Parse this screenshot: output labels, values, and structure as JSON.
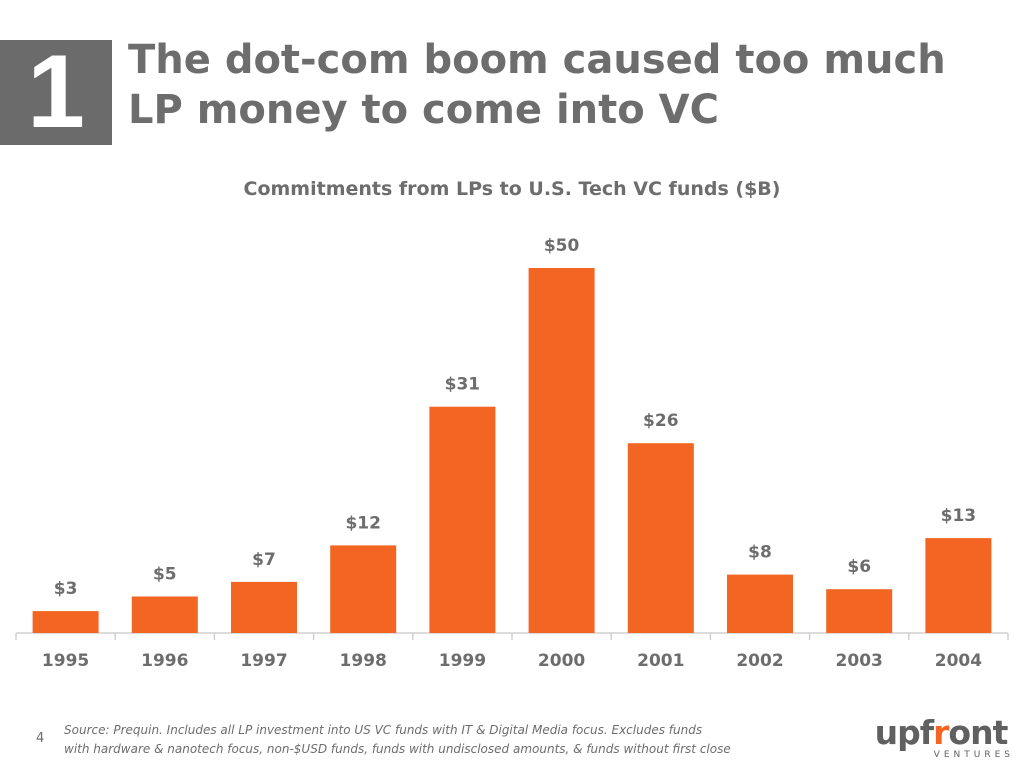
{
  "slide": {
    "number": "1",
    "title_lines": [
      "The dot-com boom caused too much",
      "LP money to come into VC"
    ],
    "page_number": "4",
    "footnote_lines": [
      "Source:  Prequin.  Includes all LP investment into US VC funds with IT & Digital Media focus.  Excludes funds",
      "with hardware & nanotech focus, non-$USD funds, funds with undisclosed amounts, & funds without first close"
    ]
  },
  "logo": {
    "word_pre": "upf",
    "word_accent": "r",
    "word_post": "ont",
    "sub": "VENTURES",
    "accent_color": "#f26522"
  },
  "chart_data": {
    "type": "bar",
    "title": "Commitments from LPs to U.S. Tech VC funds ($B)",
    "categories": [
      "1995",
      "1996",
      "1997",
      "1998",
      "1999",
      "2000",
      "2001",
      "2002",
      "2003",
      "2004"
    ],
    "values": [
      3,
      5,
      7,
      12,
      31,
      50,
      26,
      8,
      6,
      13
    ],
    "data_labels": [
      "$3",
      "$5",
      "$7",
      "$12",
      "$31",
      "$50",
      "$26",
      "$8",
      "$6",
      "$13"
    ],
    "ylim": [
      0,
      50
    ],
    "grid": false,
    "legend": "none",
    "bar_color": "#f26522",
    "axis_color": "#d0d0d0"
  }
}
